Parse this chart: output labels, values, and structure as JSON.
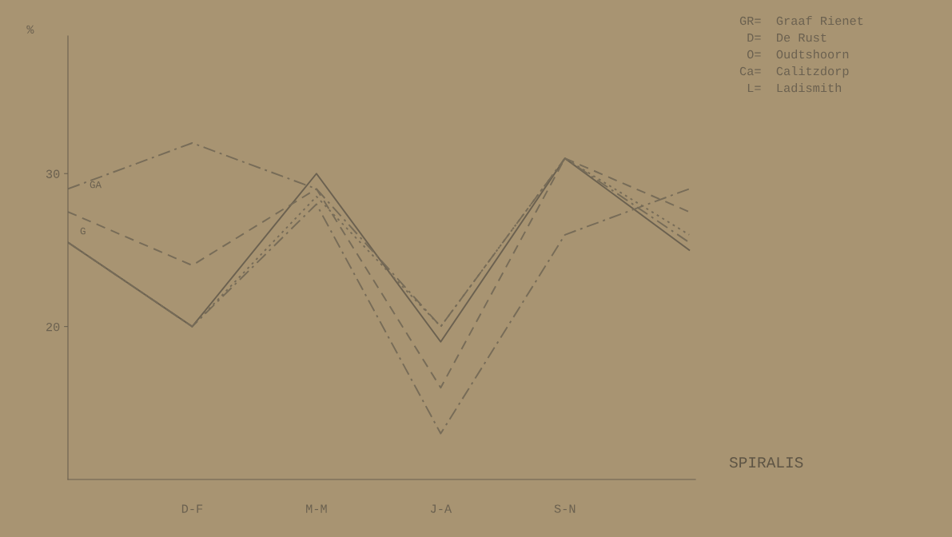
{
  "chart_data": {
    "type": "line",
    "ylabel": "%",
    "categories": [
      null,
      "D-F",
      "M-M",
      "J-A",
      "S-N",
      null
    ],
    "ylim": [
      10,
      39
    ],
    "yticks": [
      20,
      30
    ],
    "series": [
      {
        "color": "#6b6150",
        "line_style": "solid",
        "values": [
          25.5,
          20,
          30,
          19,
          31,
          25
        ]
      },
      {
        "color": "#776c58",
        "line_style": "dashed",
        "values": [
          27.5,
          24,
          29,
          16,
          31,
          27.5
        ]
      },
      {
        "color": "#776c58",
        "line_style": "dashdot",
        "values": [
          29,
          32,
          29,
          20,
          31,
          25.5
        ]
      },
      {
        "color": "#776c58",
        "line_style": "dashdot",
        "values": [
          25.5,
          20,
          28,
          13,
          26,
          29
        ]
      },
      {
        "color": "#776c58",
        "line_style": "dotted",
        "values": [
          25.5,
          20,
          28.5,
          20,
          31,
          26
        ]
      }
    ],
    "annotations": [
      "GA",
      "G",
      "GR=  Graaf Rienet",
      " D=  De Rust",
      " O=  Oudtshoorn",
      "Ca=  Calitzdorp",
      " L=  Ladismith",
      "SPIRALIS"
    ],
    "grid": false,
    "marker": "none"
  }
}
